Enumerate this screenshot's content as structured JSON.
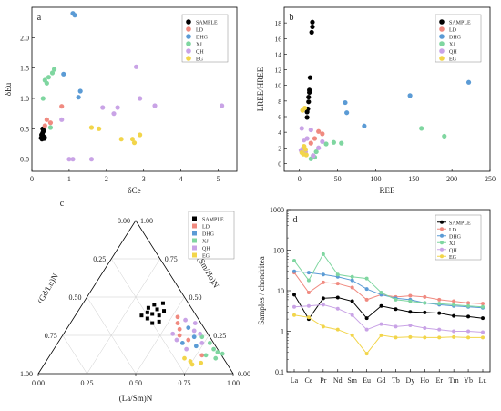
{
  "colors": {
    "SAMPLE": "#000000",
    "LD": "#f08a80",
    "DHG": "#5b9bd5",
    "XJ": "#7fd6a0",
    "QH": "#c9a3e6",
    "EG": "#f2d54a"
  },
  "legend_entries": [
    "SAMPLE",
    "LD",
    "DHG",
    "XJ",
    "QH",
    "EG"
  ],
  "chart_data": [
    {
      "panel": "a",
      "type": "scatter",
      "xlabel": "δCe",
      "ylabel": "δEu",
      "xlim": [
        0,
        5.5
      ],
      "ylim": [
        -0.2,
        2.5
      ],
      "xticks": [
        "0",
        "1",
        "2",
        "3",
        "4",
        "5"
      ],
      "yticks": [
        "0.0",
        "0.5",
        "1.0",
        "1.5",
        "2.0"
      ],
      "xtick_values": [
        0,
        1,
        2,
        3,
        4,
        5
      ],
      "ytick_values": [
        0,
        0.5,
        1.0,
        1.5,
        2.0
      ],
      "legend_placement": "top-right",
      "series": [
        {
          "name": "SAMPLE",
          "points": [
            [
              0.25,
              0.35
            ],
            [
              0.28,
              0.42
            ],
            [
              0.3,
              0.38
            ],
            [
              0.32,
              0.47
            ],
            [
              0.27,
              0.33
            ],
            [
              0.34,
              0.36
            ],
            [
              0.3,
              0.45
            ],
            [
              0.26,
              0.4
            ],
            [
              0.33,
              0.34
            ],
            [
              0.29,
              0.5
            ]
          ]
        },
        {
          "name": "LD",
          "points": [
            [
              0.35,
              0.55
            ],
            [
              0.4,
              0.65
            ],
            [
              0.5,
              0.6
            ],
            [
              0.8,
              0.87
            ]
          ]
        },
        {
          "name": "DHG",
          "points": [
            [
              1.1,
              2.4
            ],
            [
              1.15,
              2.37
            ],
            [
              0.85,
              1.4
            ],
            [
              1.3,
              1.12
            ],
            [
              1.25,
              1.02
            ]
          ]
        },
        {
          "name": "XJ",
          "points": [
            [
              0.3,
              1.0
            ],
            [
              0.35,
              1.3
            ],
            [
              0.45,
              1.35
            ],
            [
              0.55,
              1.42
            ],
            [
              0.6,
              1.48
            ],
            [
              0.4,
              1.25
            ],
            [
              0.5,
              0.52
            ]
          ]
        },
        {
          "name": "QH",
          "points": [
            [
              0.8,
              0.65
            ],
            [
              1.0,
              0.0
            ],
            [
              1.1,
              0.0
            ],
            [
              1.6,
              0.0
            ],
            [
              2.2,
              0.75
            ],
            [
              2.3,
              0.85
            ],
            [
              2.8,
              1.52
            ],
            [
              2.9,
              1.0
            ],
            [
              3.3,
              0.88
            ],
            [
              5.1,
              0.88
            ],
            [
              1.9,
              0.85
            ]
          ]
        },
        {
          "name": "EG",
          "points": [
            [
              1.6,
              0.52
            ],
            [
              1.8,
              0.5
            ],
            [
              2.4,
              0.33
            ],
            [
              2.7,
              0.33
            ],
            [
              2.75,
              0.27
            ],
            [
              2.9,
              0.4
            ]
          ]
        }
      ]
    },
    {
      "panel": "b",
      "type": "scatter",
      "xlabel": "REE",
      "ylabel": "LREE/HREE",
      "xlim": [
        -20,
        250
      ],
      "ylim": [
        -1,
        20
      ],
      "xticks": [
        "0",
        "50",
        "100",
        "150",
        "200",
        "250"
      ],
      "yticks": [
        "0",
        "2",
        "4",
        "6",
        "8",
        "10",
        "12",
        "14",
        "16",
        "18"
      ],
      "xtick_values": [
        0,
        50,
        100,
        150,
        200,
        250
      ],
      "ytick_values": [
        0,
        2,
        4,
        6,
        8,
        10,
        12,
        14,
        16,
        18
      ],
      "legend_placement": "top-right",
      "series": [
        {
          "name": "SAMPLE",
          "points": [
            [
              10,
              5.9
            ],
            [
              11,
              7
            ],
            [
              12,
              7.9
            ],
            [
              12,
              8.5
            ],
            [
              13,
              9.1
            ],
            [
              13,
              9.4
            ],
            [
              14,
              11
            ],
            [
              16,
              16.8
            ],
            [
              17,
              17.5
            ],
            [
              17,
              18.1
            ],
            [
              10,
              6.6
            ]
          ]
        },
        {
          "name": "LD",
          "points": [
            [
              20,
              3.2
            ],
            [
              25,
              4.1
            ],
            [
              30,
              3.8
            ],
            [
              15,
              2.6
            ]
          ]
        },
        {
          "name": "DHG",
          "points": [
            [
              60,
              7.8
            ],
            [
              62,
              6.5
            ],
            [
              85,
              4.8
            ],
            [
              145,
              8.7
            ],
            [
              222,
              10.4
            ]
          ]
        },
        {
          "name": "XJ",
          "points": [
            [
              18,
              1.0
            ],
            [
              22,
              1.5
            ],
            [
              35,
              2.5
            ],
            [
              45,
              2.7
            ],
            [
              55,
              2.6
            ],
            [
              160,
              4.5
            ],
            [
              190,
              3.5
            ],
            [
              15,
              0.6
            ],
            [
              20,
              0.8
            ]
          ]
        },
        {
          "name": "QH",
          "points": [
            [
              3,
              4.5
            ],
            [
              5,
              2.0
            ],
            [
              8,
              1.5
            ],
            [
              10,
              3.2
            ],
            [
              15,
              4.3
            ],
            [
              18,
              1.0
            ],
            [
              25,
              2.0
            ],
            [
              30,
              2.8
            ],
            [
              2,
              1.7
            ],
            [
              6,
              3.0
            ]
          ]
        },
        {
          "name": "EG",
          "points": [
            [
              3,
              1.4
            ],
            [
              5,
              1.2
            ],
            [
              6,
              2.2
            ],
            [
              8,
              1.8
            ],
            [
              4,
              6.8
            ],
            [
              7,
              7.1
            ],
            [
              9,
              1.1
            ]
          ]
        }
      ]
    },
    {
      "panel": "c",
      "type": "scatter",
      "subtype": "ternary",
      "axis_bottom": "(La/Sm)N",
      "axis_left": "(Gd/Lu)N",
      "axis_right": "(Sm/Ho)N",
      "ticks": [
        "0.00",
        "0.25",
        "0.50",
        "0.75",
        "1.00"
      ],
      "tick_values": [
        0,
        0.25,
        0.5,
        0.75,
        1.0
      ],
      "legend_placement": "top-right",
      "series": [
        {
          "name": "SAMPLE",
          "points": [
            [
              0.34,
              0.38
            ],
            [
              0.38,
              0.36
            ],
            [
              0.42,
              0.33
            ],
            [
              0.36,
              0.4
            ],
            [
              0.4,
              0.42
            ],
            [
              0.43,
              0.38
            ],
            [
              0.37,
              0.45
            ],
            [
              0.41,
              0.46
            ],
            [
              0.45,
              0.34
            ],
            [
              0.39,
              0.39
            ],
            [
              0.35,
              0.43
            ],
            [
              0.44,
              0.41
            ]
          ]
        },
        {
          "name": "LD",
          "points": [
            [
              0.55,
              0.33
            ],
            [
              0.58,
              0.29
            ],
            [
              0.66,
              0.22
            ],
            [
              0.6,
              0.25
            ],
            [
              0.78,
              0.12
            ],
            [
              0.53,
              0.37
            ]
          ]
        },
        {
          "name": "DHG",
          "points": [
            [
              0.62,
              0.3
            ],
            [
              0.68,
              0.24
            ],
            [
              0.72,
              0.18
            ],
            [
              0.64,
              0.2
            ]
          ]
        },
        {
          "name": "XJ",
          "points": [
            [
              0.78,
              0.2
            ],
            [
              0.82,
              0.16
            ],
            [
              0.85,
              0.14
            ],
            [
              0.8,
              0.12
            ],
            [
              0.72,
              0.24
            ],
            [
              0.86,
              0.1
            ],
            [
              0.88,
              0.13
            ]
          ]
        },
        {
          "name": "QH",
          "points": [
            [
              0.56,
              0.26
            ],
            [
              0.6,
              0.22
            ],
            [
              0.66,
              0.28
            ],
            [
              0.7,
              0.26
            ],
            [
              0.74,
              0.2
            ],
            [
              0.68,
              0.16
            ],
            [
              0.64,
              0.33
            ],
            [
              0.58,
              0.35
            ]
          ]
        },
        {
          "name": "EG",
          "points": [
            [
              0.7,
              0.1
            ],
            [
              0.74,
              0.08
            ],
            [
              0.76,
              0.06
            ],
            [
              0.8,
              0.07
            ]
          ]
        }
      ]
    },
    {
      "panel": "d",
      "type": "line",
      "subtype": "log",
      "ylabel": "Samples / chondritea",
      "categories": [
        "La",
        "Ce",
        "Pr",
        "Nd",
        "Sm",
        "Eu",
        "Gd",
        "Tb",
        "Dy",
        "Ho",
        "Er",
        "Tm",
        "Yb",
        "Lu"
      ],
      "ylim": [
        0.1,
        1000
      ],
      "yticks": [
        "0.1",
        "1",
        "10",
        "100",
        "1000"
      ],
      "ytick_values": [
        0.1,
        1,
        10,
        100,
        1000
      ],
      "legend_placement": "top-right",
      "series": [
        {
          "name": "SAMPLE",
          "values": [
            8.0,
            2.0,
            6.5,
            6.8,
            5.5,
            2.1,
            4.2,
            3.5,
            3.0,
            2.9,
            2.8,
            2.4,
            2.3,
            2.1
          ]
        },
        {
          "name": "LD",
          "values": [
            28,
            9,
            16,
            15,
            12,
            6,
            8,
            7,
            7.5,
            7,
            6,
            5.5,
            5,
            4.8
          ]
        },
        {
          "name": "DHG",
          "values": [
            30,
            28,
            25,
            22,
            18,
            11,
            8,
            6.5,
            6,
            5,
            4.5,
            4.2,
            4.0,
            3.8
          ]
        },
        {
          "name": "XJ",
          "values": [
            55,
            18,
            80,
            25,
            22,
            20,
            9,
            6,
            5.5,
            5,
            4.8,
            4.5,
            4.2,
            4.0
          ]
        },
        {
          "name": "QH",
          "values": [
            4.0,
            4.2,
            4.5,
            3.6,
            2.5,
            1.1,
            1.5,
            1.3,
            1.4,
            1.2,
            1.1,
            1.0,
            1.0,
            0.95
          ]
        },
        {
          "name": "EG",
          "values": [
            2.5,
            2.2,
            1.3,
            1.1,
            0.8,
            0.28,
            0.8,
            0.7,
            0.72,
            0.7,
            0.7,
            0.72,
            0.7,
            0.7
          ]
        }
      ]
    }
  ]
}
